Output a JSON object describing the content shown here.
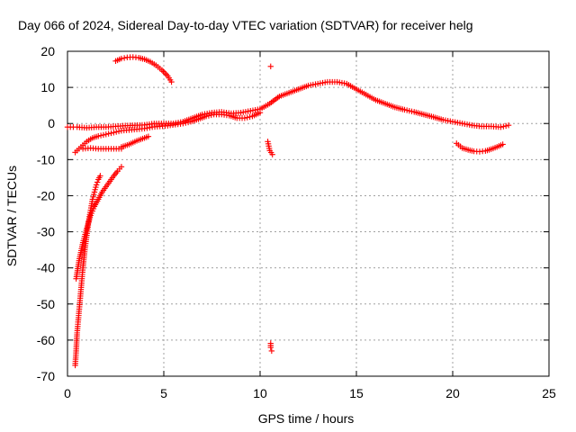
{
  "chart_data": {
    "type": "scatter",
    "title": "Day 066 of 2024, Sidereal Day-to-day VTEC variation (SDTVAR) for receiver helg",
    "xlabel": "GPS time / hours",
    "ylabel": "SDTVAR / TECUs",
    "xlim": [
      0,
      25
    ],
    "ylim": [
      -70,
      20
    ],
    "xticks": [
      "0",
      "5",
      "10",
      "15",
      "20",
      "25"
    ],
    "yticks": [
      "20",
      "10",
      "0",
      "-10",
      "-20",
      "-30",
      "-40",
      "-50",
      "-60",
      "-70"
    ],
    "grid": true,
    "marker": "+",
    "color": "#ff0000",
    "series": [
      {
        "name": "main-arc",
        "x": [
          0.0,
          0.3,
          0.5,
          1,
          1.5,
          2,
          2.5,
          3,
          3.5,
          4,
          4.5,
          5,
          5.5,
          6,
          6.5,
          7,
          7.5,
          8,
          8.5,
          9,
          9.5,
          10,
          10.5,
          11,
          11.5,
          12,
          12.5,
          13,
          13.5,
          14,
          14.5,
          15,
          15.5,
          16,
          16.5,
          17,
          17.5,
          18,
          18.5,
          19,
          19.5,
          20,
          20.5,
          21,
          21.5,
          22,
          22.5,
          22.9
        ],
        "y": [
          -1,
          -1,
          -1,
          -1.2,
          -1,
          -1,
          -0.8,
          -0.6,
          -0.5,
          -0.4,
          0,
          0,
          0,
          0.5,
          1.5,
          2.5,
          3,
          3.2,
          2.8,
          3,
          3.5,
          4,
          5.5,
          7.5,
          8.5,
          9.5,
          10.5,
          11,
          11.5,
          11.5,
          11,
          9.5,
          8,
          6.5,
          5.5,
          4.5,
          3.8,
          3.2,
          2.5,
          1.8,
          1,
          0.5,
          0,
          -0.5,
          -0.8,
          -0.8,
          -1,
          -0.5
        ]
      },
      {
        "name": "lower-band",
        "x": [
          0.4,
          0.7,
          1,
          1.3,
          1.6,
          2,
          2.4,
          2.8,
          3.2,
          3.6,
          4.0,
          4.4,
          4.8,
          5.2,
          5.6,
          6.0,
          6.4,
          6.8,
          7.2,
          7.6,
          8.0,
          8.4,
          8.8,
          9.2,
          9.6,
          10.0
        ],
        "y": [
          -8,
          -6.5,
          -5,
          -4,
          -3.5,
          -3,
          -2.5,
          -2,
          -1.8,
          -1.6,
          -1.4,
          -1,
          -0.8,
          -0.6,
          -0.3,
          0,
          0.5,
          1.2,
          2,
          2.5,
          2.5,
          2.2,
          1.5,
          1.5,
          2,
          3
        ]
      },
      {
        "name": "flat-segment",
        "x": [
          0.8,
          1.2,
          1.6,
          2,
          2.4,
          2.8
        ],
        "y": [
          -7,
          -6.8,
          -7,
          -7,
          -7,
          -7
        ]
      },
      {
        "name": "rise-segment",
        "x": [
          2.8,
          3.2,
          3.6,
          4.0,
          4.2
        ],
        "y": [
          -6.5,
          -5.8,
          -4.8,
          -4.0,
          -3.6
        ]
      },
      {
        "name": "upper-arc",
        "x": [
          2.5,
          2.8,
          3.1,
          3.4,
          3.7,
          4,
          4.3,
          4.6,
          4.9,
          5.2,
          5.4
        ],
        "y": [
          17.3,
          18,
          18.3,
          18.4,
          18.2,
          17.8,
          17.1,
          16.1,
          14.8,
          13.2,
          11.5
        ]
      },
      {
        "name": "steep-curve-1",
        "x": [
          0.4,
          0.45,
          0.5,
          0.6,
          0.7,
          0.8,
          0.9,
          1,
          1.1,
          1.2,
          1.3,
          1.4,
          1.5,
          1.6,
          1.7
        ],
        "y": [
          -67,
          -63,
          -58,
          -52,
          -46,
          -40,
          -35,
          -31,
          -27,
          -24,
          -21,
          -19,
          -17,
          -15.5,
          -14.5
        ]
      },
      {
        "name": "steep-curve-2",
        "x": [
          0.45,
          0.6,
          0.8,
          1,
          1.2,
          1.4,
          1.6,
          1.8,
          2,
          2.2,
          2.4,
          2.6,
          2.8
        ],
        "y": [
          -43,
          -38,
          -33,
          -29,
          -25.5,
          -23,
          -21,
          -19,
          -17.5,
          -16,
          -14.5,
          -13.2,
          -12
        ]
      },
      {
        "name": "cluster-105",
        "x": [
          10.4,
          10.5,
          10.55,
          10.6
        ],
        "y": [
          -5,
          -7.5,
          -62,
          -63
        ]
      },
      {
        "name": "outlier",
        "x": [
          10.55
        ],
        "y": [
          15.8
        ]
      },
      {
        "name": "dip-arc",
        "x": [
          20.2,
          20.5,
          20.8,
          21.1,
          21.4,
          21.7,
          22,
          22.3,
          22.6
        ],
        "y": [
          -5.5,
          -6.8,
          -7.3,
          -7.7,
          -7.8,
          -7.6,
          -7.1,
          -6.5,
          -5.8
        ]
      }
    ]
  }
}
